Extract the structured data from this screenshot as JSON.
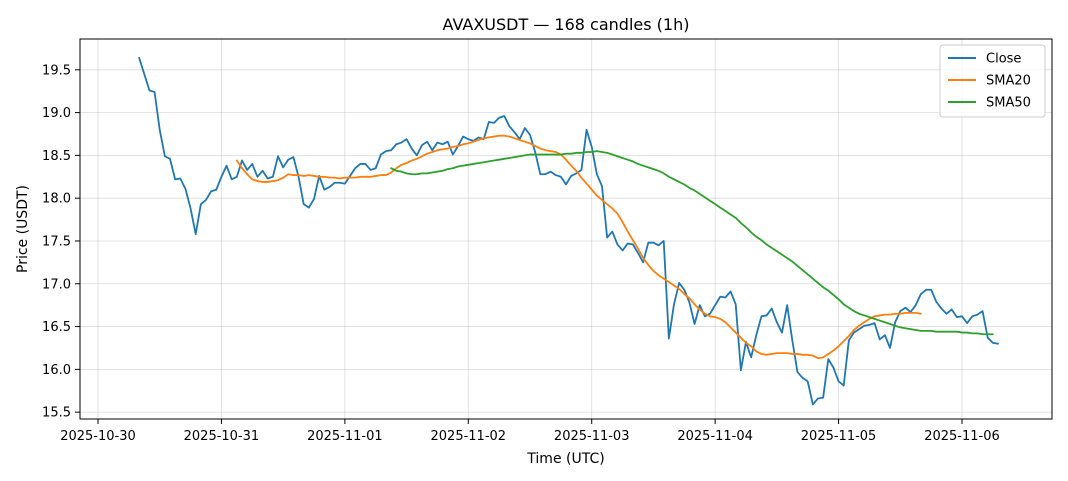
{
  "chart_data": {
    "type": "line",
    "title": "AVAXUSDT — 168 candles (1h)",
    "xlabel": "Time (UTC)",
    "ylabel": "Price (USDT)",
    "x_ticks": [
      "2025-10-30",
      "2025-10-31",
      "2025-11-01",
      "2025-11-02",
      "2025-11-03",
      "2025-11-04",
      "2025-11-05",
      "2025-11-06"
    ],
    "y_ticks": [
      "15.5",
      "16.0",
      "16.5",
      "17.0",
      "17.5",
      "18.0",
      "18.5",
      "19.0",
      "19.5"
    ],
    "xlim": [
      "2025-10-29T20:30:00",
      "2025-11-06T17:30:00"
    ],
    "ylim": [
      15.42,
      19.86
    ],
    "grid": true,
    "legend_position": "top-right",
    "x_start": "2025-10-30T08:00:00",
    "x_step_hours": 1,
    "series": [
      {
        "name": "Close",
        "color": "#1f77b4",
        "offset": 0,
        "values": [
          19.64,
          19.45,
          19.26,
          19.24,
          18.8,
          18.49,
          18.46,
          18.22,
          18.23,
          18.11,
          17.88,
          17.58,
          17.93,
          17.98,
          18.08,
          18.1,
          18.25,
          18.38,
          18.22,
          18.25,
          18.44,
          18.33,
          18.4,
          18.25,
          18.32,
          18.23,
          18.25,
          18.49,
          18.36,
          18.45,
          18.48,
          18.25,
          17.93,
          17.89,
          17.99,
          18.26,
          18.1,
          18.13,
          18.18,
          18.18,
          18.17,
          18.26,
          18.35,
          18.4,
          18.4,
          18.33,
          18.35,
          18.51,
          18.55,
          18.56,
          18.63,
          18.65,
          18.69,
          18.58,
          18.5,
          18.62,
          18.66,
          18.56,
          18.65,
          18.63,
          18.66,
          18.51,
          18.61,
          18.72,
          18.69,
          18.67,
          18.71,
          18.69,
          18.89,
          18.88,
          18.94,
          18.96,
          18.84,
          18.77,
          18.69,
          18.82,
          18.74,
          18.54,
          18.28,
          18.28,
          18.31,
          18.27,
          18.25,
          18.16,
          18.26,
          18.29,
          18.33,
          18.8,
          18.6,
          18.28,
          18.14,
          17.54,
          17.61,
          17.46,
          17.39,
          17.47,
          17.46,
          17.36,
          17.25,
          17.48,
          17.48,
          17.45,
          17.5,
          16.36,
          16.76,
          17.01,
          16.93,
          16.78,
          16.53,
          16.75,
          16.62,
          16.65,
          16.75,
          16.85,
          16.84,
          16.91,
          16.76,
          15.99,
          16.32,
          16.14,
          16.4,
          16.62,
          16.63,
          16.71,
          16.55,
          16.43,
          16.75,
          16.34,
          15.97,
          15.9,
          15.86,
          15.59,
          15.66,
          15.67,
          16.12,
          16.02,
          15.86,
          15.81,
          16.34,
          16.43,
          16.47,
          16.51,
          16.52,
          16.54,
          16.35,
          16.4,
          16.25,
          16.55,
          16.68,
          16.72,
          16.67,
          16.75,
          16.88,
          16.93,
          16.93,
          16.79,
          16.71,
          16.65,
          16.7,
          16.61,
          16.62,
          16.54,
          16.62,
          16.64,
          16.68,
          16.37,
          16.31,
          16.3
        ]
      },
      {
        "name": "SMA20",
        "color": "#ff7f0e",
        "offset": 19,
        "values": [
          18.44,
          18.35,
          18.28,
          18.22,
          18.2,
          18.19,
          18.19,
          18.2,
          18.21,
          18.24,
          18.28,
          18.27,
          18.27,
          18.26,
          18.27,
          18.26,
          18.25,
          18.25,
          18.24,
          18.24,
          18.23,
          18.24,
          18.24,
          18.24,
          18.25,
          18.25,
          18.25,
          18.26,
          18.27,
          18.27,
          18.3,
          18.35,
          18.39,
          18.41,
          18.44,
          18.46,
          18.49,
          18.52,
          18.54,
          18.56,
          18.57,
          18.58,
          18.6,
          18.61,
          18.63,
          18.64,
          18.66,
          18.68,
          18.7,
          18.71,
          18.72,
          18.73,
          18.73,
          18.72,
          18.7,
          18.68,
          18.66,
          18.64,
          18.61,
          18.58,
          18.56,
          18.55,
          18.54,
          18.51,
          18.45,
          18.38,
          18.32,
          18.24,
          18.17,
          18.1,
          18.03,
          17.98,
          17.93,
          17.88,
          17.82,
          17.72,
          17.61,
          17.51,
          17.41,
          17.3,
          17.22,
          17.15,
          17.1,
          17.06,
          17.02,
          16.98,
          16.94,
          16.88,
          16.83,
          16.76,
          16.7,
          16.65,
          16.62,
          16.61,
          16.59,
          16.55,
          16.49,
          16.43,
          16.37,
          16.31,
          16.27,
          16.21,
          16.18,
          16.17,
          16.18,
          16.19,
          16.19,
          16.19,
          16.18,
          16.18,
          16.17,
          16.17,
          16.16,
          16.13,
          16.14,
          16.18,
          16.22,
          16.27,
          16.33,
          16.39,
          16.46,
          16.51,
          16.55,
          16.59,
          16.62,
          16.63,
          16.64,
          16.64,
          16.65,
          16.65,
          16.66,
          16.66,
          16.66,
          16.65
        ]
      },
      {
        "name": "SMA50",
        "color": "#2ca02c",
        "offset": 49,
        "values": [
          18.35,
          18.32,
          18.31,
          18.29,
          18.28,
          18.28,
          18.29,
          18.29,
          18.3,
          18.31,
          18.32,
          18.34,
          18.35,
          18.37,
          18.38,
          18.39,
          18.4,
          18.41,
          18.42,
          18.43,
          18.44,
          18.45,
          18.46,
          18.47,
          18.48,
          18.49,
          18.5,
          18.51,
          18.51,
          18.51,
          18.51,
          18.51,
          18.51,
          18.51,
          18.52,
          18.52,
          18.53,
          18.53,
          18.54,
          18.54,
          18.55,
          18.54,
          18.53,
          18.51,
          18.49,
          18.47,
          18.45,
          18.43,
          18.4,
          18.38,
          18.36,
          18.34,
          18.32,
          18.29,
          18.25,
          18.22,
          18.19,
          18.16,
          18.12,
          18.09,
          18.05,
          18.01,
          17.97,
          17.93,
          17.89,
          17.85,
          17.81,
          17.77,
          17.71,
          17.66,
          17.6,
          17.55,
          17.51,
          17.46,
          17.42,
          17.38,
          17.34,
          17.3,
          17.26,
          17.21,
          17.16,
          17.11,
          17.06,
          17.01,
          16.96,
          16.92,
          16.87,
          16.82,
          16.76,
          16.72,
          16.68,
          16.65,
          16.63,
          16.61,
          16.59,
          16.57,
          16.55,
          16.53,
          16.51,
          16.49,
          16.48,
          16.47,
          16.46,
          16.45,
          16.45,
          16.45,
          16.44,
          16.44,
          16.44,
          16.44,
          16.44,
          16.43,
          16.43,
          16.42,
          16.42,
          16.41,
          16.41,
          16.41
        ]
      }
    ]
  }
}
